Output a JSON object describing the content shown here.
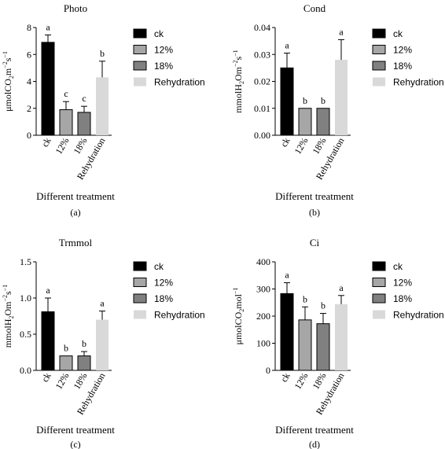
{
  "colors": {
    "ck": "#000000",
    "12%": "#a6a6a6",
    "18%": "#808080",
    "Rehydration": "#d9d9d9",
    "axis": "#000000"
  },
  "chart_data": [
    {
      "panel": "a",
      "type": "bar",
      "title": "Photo",
      "ylabel_parts": [
        [
          "μmolCO",
          "n"
        ],
        [
          "2",
          "sub"
        ],
        [
          "m",
          "n"
        ],
        [
          "−2",
          "sup"
        ],
        [
          "s",
          "n"
        ],
        [
          "−1",
          "sup"
        ]
      ],
      "xlabel": "Different treatment",
      "caption": "(a)",
      "categories": [
        "ck",
        "12%",
        "18%",
        "Rehydration"
      ],
      "values": [
        6.9,
        1.9,
        1.7,
        4.3
      ],
      "errors": [
        0.55,
        0.6,
        0.45,
        1.2
      ],
      "letters": [
        "a",
        "c",
        "c",
        "b"
      ],
      "ylim": [
        0,
        8
      ],
      "yticks": [
        0,
        2,
        4,
        6,
        8
      ],
      "ytick_labels": [
        "0",
        "2",
        "4",
        "6",
        "8"
      ],
      "legend": [
        "ck",
        "12%",
        "18%",
        "Rehydration"
      ],
      "legend_position": "right"
    },
    {
      "panel": "b",
      "type": "bar",
      "title": "Cond",
      "ylabel_parts": [
        [
          "mmolH",
          "n"
        ],
        [
          "2",
          "sub"
        ],
        [
          "Om",
          "n"
        ],
        [
          "−2",
          "sup"
        ],
        [
          "s",
          "n"
        ],
        [
          "−1",
          "sup"
        ]
      ],
      "xlabel": "Different treatment",
      "caption": "(b)",
      "categories": [
        "ck",
        "12%",
        "18%",
        "Rehydration"
      ],
      "values": [
        0.025,
        0.01,
        0.01,
        0.028
      ],
      "errors": [
        0.0055,
        0,
        0,
        0.0075
      ],
      "letters": [
        "a",
        "b",
        "b",
        "a"
      ],
      "ylim": [
        0,
        0.04
      ],
      "yticks": [
        0,
        0.01,
        0.02,
        0.03,
        0.04
      ],
      "ytick_labels": [
        "0.00",
        "0.01",
        "0.02",
        "0.03",
        "0.04"
      ],
      "legend": [
        "ck",
        "12%",
        "18%",
        "Rehydration"
      ],
      "legend_position": "right"
    },
    {
      "panel": "c",
      "type": "bar",
      "title": "Trmmol",
      "ylabel_parts": [
        [
          "mmolH",
          "n"
        ],
        [
          "2",
          "sub"
        ],
        [
          "Om",
          "n"
        ],
        [
          "−2",
          "sup"
        ],
        [
          "s",
          "n"
        ],
        [
          "−1",
          "sup"
        ]
      ],
      "xlabel": "Different treatment",
      "caption": "(c)",
      "categories": [
        "ck",
        "12%",
        "18%",
        "Rehydration"
      ],
      "values": [
        0.81,
        0.2,
        0.2,
        0.7
      ],
      "errors": [
        0.19,
        0,
        0.06,
        0.12
      ],
      "letters": [
        "a",
        "b",
        "b",
        "a"
      ],
      "ylim": [
        0,
        1.5
      ],
      "yticks": [
        0,
        0.5,
        1,
        1.5
      ],
      "ytick_labels": [
        "0.0",
        "0.5",
        "1.0",
        "1.5"
      ],
      "legend": [
        "ck",
        "12%",
        "18%",
        "Rehydration"
      ],
      "legend_position": "right"
    },
    {
      "panel": "d",
      "type": "bar",
      "title": "Ci",
      "ylabel_parts": [
        [
          "μmolCO",
          "n"
        ],
        [
          "2",
          "sub"
        ],
        [
          "mol",
          "n"
        ],
        [
          "−1",
          "sup"
        ]
      ],
      "xlabel": "Different treatment",
      "caption": "(d)",
      "categories": [
        "ck",
        "12%",
        "18%",
        "Rehydration"
      ],
      "values": [
        283,
        186,
        172,
        244
      ],
      "errors": [
        40,
        48,
        38,
        32
      ],
      "letters": [
        "a",
        "b",
        "b",
        "a"
      ],
      "ylim": [
        0,
        400
      ],
      "yticks": [
        0,
        100,
        200,
        300,
        400
      ],
      "ytick_labels": [
        "0",
        "100",
        "200",
        "300",
        "400"
      ],
      "legend": [
        "ck",
        "12%",
        "18%",
        "Rehydration"
      ],
      "legend_position": "right"
    }
  ]
}
